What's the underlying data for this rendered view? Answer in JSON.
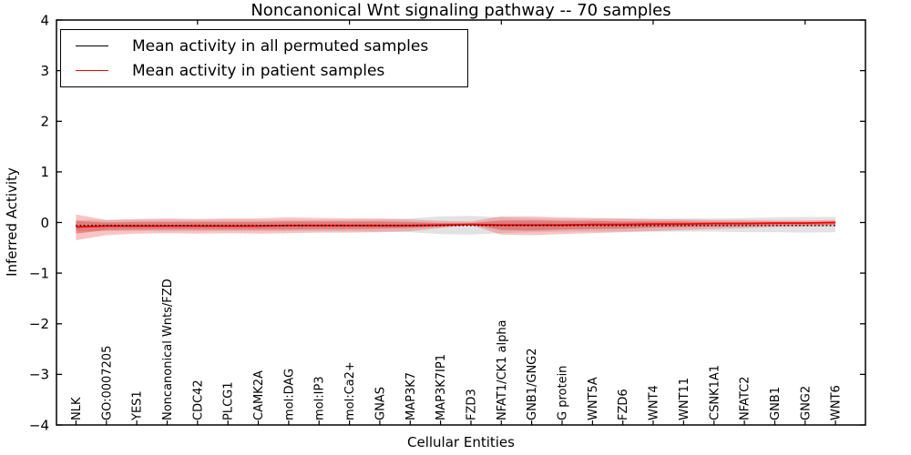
{
  "figure": {
    "title": "Noncanonical Wnt signaling pathway -- 70 samples",
    "xlabel": "Cellular Entities",
    "ylabel": "Inferred Activity"
  },
  "legend": {
    "items": [
      {
        "label": "Mean activity in all permuted samples",
        "color": "#000000"
      },
      {
        "label": "Mean activity in patient samples",
        "color": "#ff0000"
      }
    ]
  },
  "chart_data": {
    "type": "line",
    "title": "Noncanonical Wnt signaling pathway -- 70 samples",
    "xlabel": "Cellular Entities",
    "ylabel": "Inferred Activity",
    "ylim": [
      -4,
      4
    ],
    "ytick_labels": [
      "4",
      "3",
      "2",
      "1",
      "0",
      "−1",
      "−2",
      "−3",
      "−4"
    ],
    "ytick_values": [
      4,
      3,
      2,
      1,
      0,
      -1,
      -2,
      -3,
      -4
    ],
    "grid": false,
    "legend_position": "upper left",
    "categories": [
      "NLK",
      "GO:0007205",
      "YES1",
      "Noncanonical Wnts/FZD",
      "CDC42",
      "PLCG1",
      "CAMK2A",
      "mol:DAG",
      "mol:IP3",
      "mol:Ca2+",
      "GNAS",
      "MAP3K7",
      "MAP3K7IP1",
      "FZD3",
      "NFAT1/CK1 alpha",
      "GNB1/GNG2",
      "G protein",
      "WNT5A",
      "FZD6",
      "WNT4",
      "WNT11",
      "CSNK1A1",
      "NFATC2",
      "GNB1",
      "GNG2",
      "WNT6"
    ],
    "top_tick_indices": [
      4,
      9,
      14,
      19,
      24
    ],
    "series": [
      {
        "name": "Mean activity in all permuted samples",
        "color": "#000000",
        "style": "dotted",
        "values": [
          -0.06,
          -0.06,
          -0.06,
          -0.06,
          -0.06,
          -0.06,
          -0.06,
          -0.06,
          -0.06,
          -0.06,
          -0.06,
          -0.06,
          -0.06,
          -0.06,
          -0.06,
          -0.06,
          -0.06,
          -0.06,
          -0.06,
          -0.06,
          -0.06,
          -0.06,
          -0.06,
          -0.06,
          -0.06,
          -0.06
        ]
      },
      {
        "name": "Mean activity in patient samples",
        "color": "#ff0000",
        "style": "solid",
        "values": [
          -0.09,
          -0.07,
          -0.07,
          -0.07,
          -0.07,
          -0.07,
          -0.07,
          -0.06,
          -0.06,
          -0.06,
          -0.06,
          -0.06,
          -0.05,
          -0.04,
          -0.05,
          -0.05,
          -0.05,
          -0.04,
          -0.04,
          -0.03,
          -0.03,
          -0.02,
          -0.02,
          -0.01,
          -0.01,
          0.0
        ]
      }
    ],
    "bands": [
      {
        "name": "permuted-samples-band",
        "color": "rgba(125,125,125,0.22)",
        "upper": [
          0.05,
          0.05,
          0.05,
          0.05,
          0.05,
          0.05,
          0.05,
          0.05,
          0.05,
          0.05,
          0.06,
          0.08,
          0.12,
          0.13,
          0.1,
          0.08,
          0.07,
          0.07,
          0.07,
          0.07,
          0.08,
          0.08,
          0.09,
          0.1,
          0.11,
          0.11
        ],
        "lower": [
          -0.17,
          -0.17,
          -0.17,
          -0.17,
          -0.17,
          -0.17,
          -0.17,
          -0.17,
          -0.17,
          -0.17,
          -0.18,
          -0.19,
          -0.23,
          -0.24,
          -0.21,
          -0.19,
          -0.18,
          -0.18,
          -0.18,
          -0.18,
          -0.18,
          -0.18,
          -0.19,
          -0.19,
          -0.2,
          -0.19
        ]
      },
      {
        "name": "patient-samples-band-outer",
        "color": "rgba(235,60,60,0.30)",
        "upper": [
          0.16,
          0.05,
          0.07,
          0.08,
          0.07,
          0.08,
          0.08,
          0.1,
          0.09,
          0.08,
          0.08,
          0.06,
          0.03,
          0.02,
          0.12,
          0.12,
          0.1,
          0.09,
          0.08,
          0.07,
          0.06,
          0.05,
          0.05,
          0.04,
          0.04,
          0.05
        ],
        "lower": [
          -0.35,
          -0.25,
          -0.22,
          -0.21,
          -0.22,
          -0.21,
          -0.22,
          -0.21,
          -0.2,
          -0.2,
          -0.19,
          -0.17,
          -0.11,
          -0.05,
          -0.24,
          -0.25,
          -0.23,
          -0.21,
          -0.19,
          -0.17,
          -0.15,
          -0.13,
          -0.11,
          -0.09,
          -0.08,
          -0.07
        ]
      },
      {
        "name": "patient-samples-band-inner",
        "color": "rgba(215,40,40,0.38)",
        "upper": [
          0.03,
          0.0,
          0.01,
          0.01,
          0.01,
          0.01,
          0.01,
          0.02,
          0.02,
          0.02,
          0.02,
          0.01,
          -0.01,
          -0.01,
          0.04,
          0.04,
          0.03,
          0.03,
          0.02,
          0.02,
          0.02,
          0.01,
          0.01,
          0.01,
          0.01,
          0.02
        ],
        "lower": [
          -0.22,
          -0.15,
          -0.14,
          -0.14,
          -0.14,
          -0.14,
          -0.14,
          -0.14,
          -0.13,
          -0.13,
          -0.12,
          -0.11,
          -0.08,
          -0.04,
          -0.15,
          -0.16,
          -0.14,
          -0.13,
          -0.12,
          -0.1,
          -0.09,
          -0.08,
          -0.07,
          -0.06,
          -0.05,
          -0.04
        ]
      }
    ]
  }
}
